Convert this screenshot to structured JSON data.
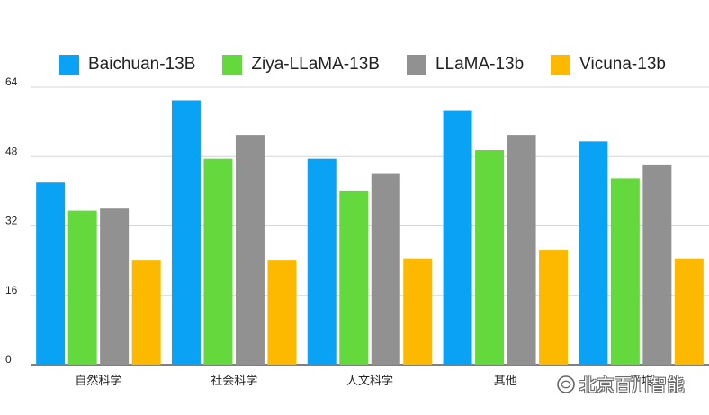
{
  "chart_data": {
    "type": "bar",
    "categories": [
      "自然科学",
      "社会科学",
      "人文科学",
      "其他",
      "平均"
    ],
    "series": [
      {
        "name": "Baichuan-13B",
        "color": "#0aa2f5",
        "values": [
          42,
          61,
          47.5,
          58.5,
          51.5
        ]
      },
      {
        "name": "Ziya-LLaMA-13B",
        "color": "#63d93d",
        "values": [
          35.5,
          47.5,
          40,
          49.5,
          43
        ]
      },
      {
        "name": "LLaMA-13b",
        "color": "#919191",
        "values": [
          36,
          53,
          44,
          53,
          46
        ]
      },
      {
        "name": "Vicuna-13b",
        "color": "#fcb900",
        "values": [
          24,
          24,
          24.5,
          26.5,
          24.5
        ]
      }
    ],
    "yticks": [
      0,
      16,
      32,
      48,
      64
    ],
    "ylim": [
      0,
      64
    ],
    "grid": true,
    "legend_position": "top"
  },
  "watermark": {
    "text": "北京百川智能",
    "icon": "wechat-channel-icon"
  }
}
